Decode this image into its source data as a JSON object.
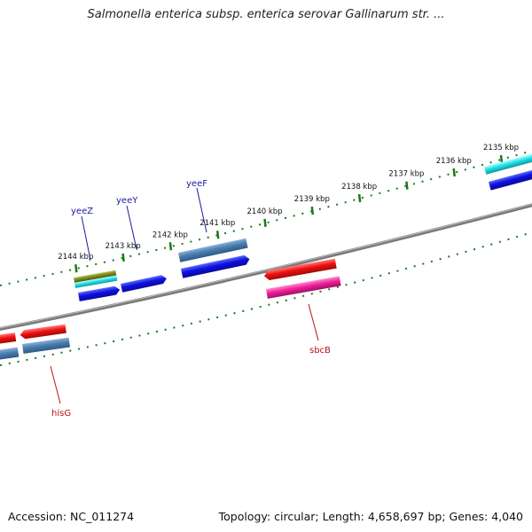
{
  "title": "Salmonella enterica subsp. enterica serovar Gallinarum str. ...",
  "footer": {
    "accession": "Accession: NC_011274",
    "summary": "Topology: circular; Length: 4,658,697 bp; Genes: 4,040"
  },
  "colors": {
    "backbone": "#7a7a7a",
    "tick": "#1a7a1a",
    "label_forward": "#1a1aa0",
    "label_reverse": "#c01010"
  },
  "ticks": [
    {
      "label": "2135 kbp",
      "kbp": 2135
    },
    {
      "label": "2136 kbp",
      "kbp": 2136
    },
    {
      "label": "2137 kbp",
      "kbp": 2137
    },
    {
      "label": "2138 kbp",
      "kbp": 2138
    },
    {
      "label": "2139 kbp",
      "kbp": 2139
    },
    {
      "label": "2140 kbp",
      "kbp": 2140
    },
    {
      "label": "2141 kbp",
      "kbp": 2141
    },
    {
      "label": "2142 kbp",
      "kbp": 2142
    },
    {
      "label": "2143 kbp",
      "kbp": 2143
    },
    {
      "label": "2144 kbp",
      "kbp": 2144
    }
  ],
  "labeled_genes": [
    {
      "name": "yeeF",
      "strand": "forward"
    },
    {
      "name": "yeeY",
      "strand": "forward"
    },
    {
      "name": "yeeZ",
      "strand": "forward"
    },
    {
      "name": "sbcB",
      "strand": "reverse"
    },
    {
      "name": "hisG",
      "strand": "reverse"
    }
  ]
}
